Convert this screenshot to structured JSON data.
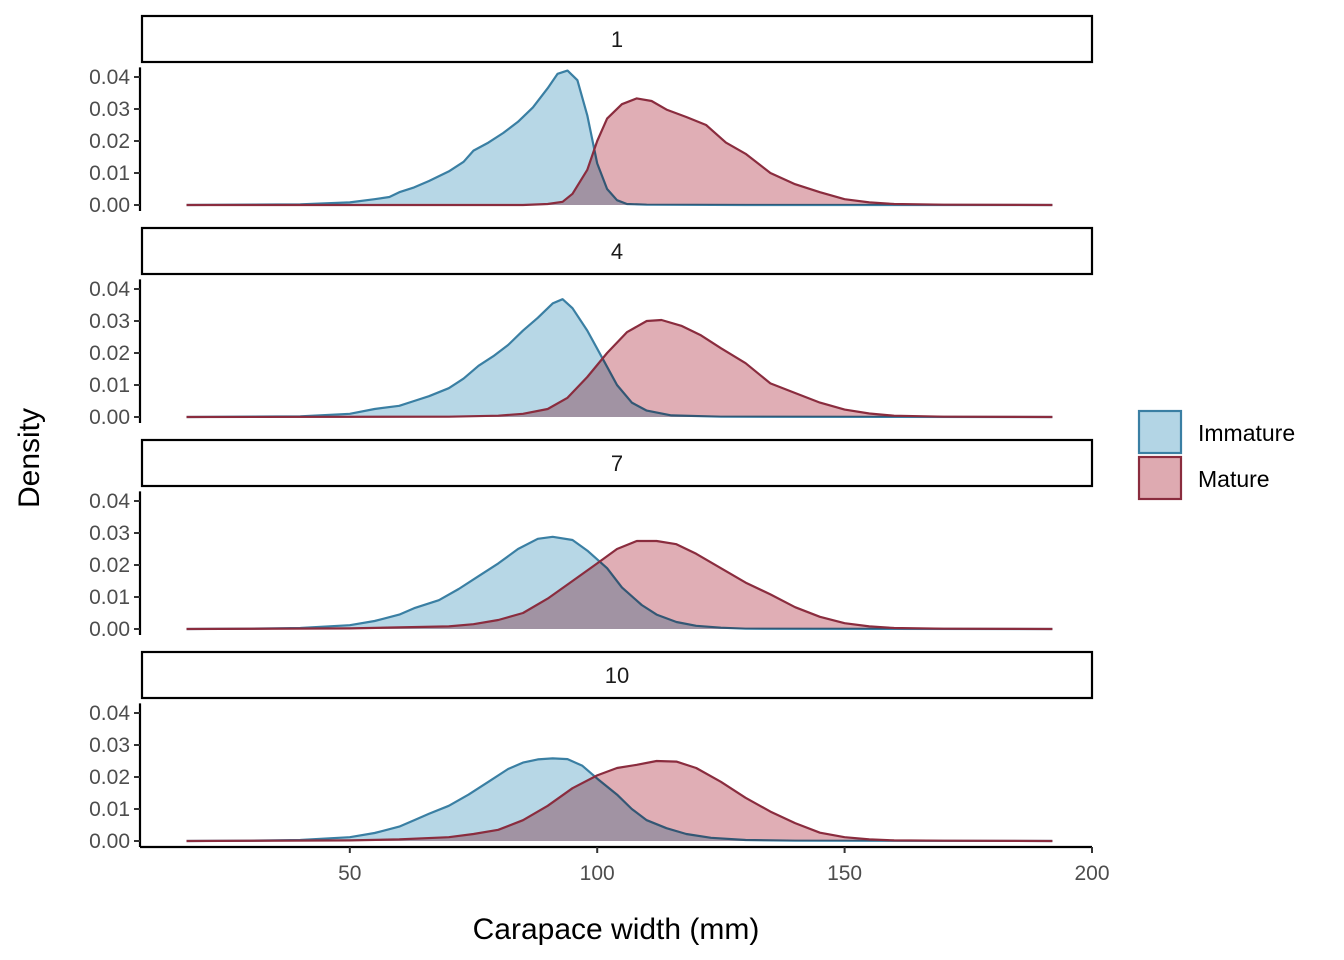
{
  "chart_data": {
    "type": "area",
    "subtype": "faceted density",
    "xlabel": "Carapace width (mm)",
    "ylabel": "Density",
    "xlim": [
      8,
      200
    ],
    "ylim": [
      0,
      0.043
    ],
    "x_ticks": [
      50,
      100,
      150,
      200
    ],
    "y_ticks": [
      0.0,
      0.01,
      0.02,
      0.03,
      0.04
    ],
    "x_tick_labels": [
      "50",
      "100",
      "150",
      "200"
    ],
    "y_tick_labels": [
      "0.00",
      "0.01",
      "0.02",
      "0.03",
      "0.04"
    ],
    "legend": {
      "position": "right"
    },
    "grid": false,
    "series_meta": [
      {
        "name": "Immature",
        "fill": "#b3d5e5",
        "line": "#3a7fa3"
      },
      {
        "name": "Mature",
        "fill": "#deaab1",
        "line": "#8a2c3e"
      }
    ],
    "panels": [
      {
        "label": "1",
        "series": [
          {
            "name": "Immature",
            "points": [
              [
                17,
                0
              ],
              [
                40,
                0.0002
              ],
              [
                50,
                0.0008
              ],
              [
                55,
                0.0018
              ],
              [
                58,
                0.0025
              ],
              [
                60,
                0.004
              ],
              [
                63,
                0.0055
              ],
              [
                66,
                0.0075
              ],
              [
                70,
                0.0105
              ],
              [
                73,
                0.0135
              ],
              [
                75,
                0.017
              ],
              [
                78,
                0.0195
              ],
              [
                81,
                0.0225
              ],
              [
                84,
                0.026
              ],
              [
                87,
                0.0305
              ],
              [
                90,
                0.0365
              ],
              [
                92,
                0.041
              ],
              [
                94,
                0.042
              ],
              [
                96,
                0.039
              ],
              [
                98,
                0.028
              ],
              [
                100,
                0.013
              ],
              [
                102,
                0.005
              ],
              [
                104,
                0.0015
              ],
              [
                106,
                0.0003
              ],
              [
                110,
                0.0001
              ],
              [
                130,
                0
              ],
              [
                192,
                0
              ]
            ]
          },
          {
            "name": "Mature",
            "points": [
              [
                17,
                0
              ],
              [
                70,
                0
              ],
              [
                85,
                0
              ],
              [
                90,
                0.0003
              ],
              [
                93,
                0.001
              ],
              [
                95,
                0.0035
              ],
              [
                98,
                0.011
              ],
              [
                100,
                0.02
              ],
              [
                102,
                0.027
              ],
              [
                105,
                0.0315
              ],
              [
                108,
                0.0333
              ],
              [
                111,
                0.0325
              ],
              [
                114,
                0.0298
              ],
              [
                118,
                0.0275
              ],
              [
                122,
                0.025
              ],
              [
                126,
                0.0195
              ],
              [
                130,
                0.016
              ],
              [
                135,
                0.01
              ],
              [
                140,
                0.0065
              ],
              [
                145,
                0.004
              ],
              [
                150,
                0.0018
              ],
              [
                155,
                0.0008
              ],
              [
                160,
                0.0003
              ],
              [
                170,
                0.0001
              ],
              [
                192,
                0
              ]
            ]
          }
        ]
      },
      {
        "label": "4",
        "series": [
          {
            "name": "Immature",
            "points": [
              [
                17,
                0
              ],
              [
                40,
                0.0002
              ],
              [
                50,
                0.001
              ],
              [
                55,
                0.0025
              ],
              [
                60,
                0.0035
              ],
              [
                63,
                0.005
              ],
              [
                66,
                0.0065
              ],
              [
                70,
                0.009
              ],
              [
                73,
                0.012
              ],
              [
                76,
                0.016
              ],
              [
                79,
                0.019
              ],
              [
                82,
                0.0225
              ],
              [
                85,
                0.027
              ],
              [
                88,
                0.031
              ],
              [
                91,
                0.0355
              ],
              [
                93,
                0.0368
              ],
              [
                95,
                0.034
              ],
              [
                98,
                0.027
              ],
              [
                101,
                0.0185
              ],
              [
                104,
                0.01
              ],
              [
                107,
                0.0045
              ],
              [
                110,
                0.002
              ],
              [
                115,
                0.0005
              ],
              [
                125,
                0.0001
              ],
              [
                192,
                0
              ]
            ]
          },
          {
            "name": "Mature",
            "points": [
              [
                17,
                0
              ],
              [
                70,
                0.0001
              ],
              [
                80,
                0.0004
              ],
              [
                85,
                0.001
              ],
              [
                90,
                0.0025
              ],
              [
                94,
                0.006
              ],
              [
                98,
                0.0125
              ],
              [
                102,
                0.02
              ],
              [
                106,
                0.0265
              ],
              [
                110,
                0.03
              ],
              [
                113,
                0.0303
              ],
              [
                117,
                0.0285
              ],
              [
                121,
                0.0255
              ],
              [
                125,
                0.0215
              ],
              [
                130,
                0.0168
              ],
              [
                135,
                0.0105
              ],
              [
                140,
                0.0075
              ],
              [
                145,
                0.0045
              ],
              [
                150,
                0.0023
              ],
              [
                155,
                0.0011
              ],
              [
                160,
                0.0004
              ],
              [
                170,
                0.0001
              ],
              [
                192,
                0
              ]
            ]
          }
        ]
      },
      {
        "label": "7",
        "series": [
          {
            "name": "Immature",
            "points": [
              [
                17,
                0
              ],
              [
                30,
                0.0001
              ],
              [
                40,
                0.0003
              ],
              [
                50,
                0.0012
              ],
              [
                55,
                0.0025
              ],
              [
                60,
                0.0045
              ],
              [
                63,
                0.0065
              ],
              [
                68,
                0.009
              ],
              [
                72,
                0.0125
              ],
              [
                76,
                0.0165
              ],
              [
                80,
                0.0205
              ],
              [
                84,
                0.025
              ],
              [
                88,
                0.0282
              ],
              [
                91,
                0.0288
              ],
              [
                95,
                0.0278
              ],
              [
                98,
                0.0245
              ],
              [
                102,
                0.019
              ],
              [
                105,
                0.013
              ],
              [
                109,
                0.0075
              ],
              [
                112,
                0.0045
              ],
              [
                116,
                0.0022
              ],
              [
                120,
                0.001
              ],
              [
                125,
                0.0004
              ],
              [
                130,
                0.0001
              ],
              [
                192,
                0
              ]
            ]
          },
          {
            "name": "Mature",
            "points": [
              [
                17,
                0
              ],
              [
                50,
                0.0002
              ],
              [
                60,
                0.0005
              ],
              [
                70,
                0.0008
              ],
              [
                75,
                0.0015
              ],
              [
                80,
                0.0028
              ],
              [
                85,
                0.005
              ],
              [
                90,
                0.0095
              ],
              [
                95,
                0.015
              ],
              [
                100,
                0.0205
              ],
              [
                104,
                0.025
              ],
              [
                108,
                0.0275
              ],
              [
                112,
                0.0275
              ],
              [
                116,
                0.0265
              ],
              [
                120,
                0.0235
              ],
              [
                125,
                0.019
              ],
              [
                130,
                0.0145
              ],
              [
                135,
                0.0108
              ],
              [
                140,
                0.0068
              ],
              [
                145,
                0.0038
              ],
              [
                150,
                0.0018
              ],
              [
                155,
                0.0008
              ],
              [
                160,
                0.0003
              ],
              [
                170,
                0.0001
              ],
              [
                192,
                0
              ]
            ]
          }
        ]
      },
      {
        "label": "10",
        "series": [
          {
            "name": "Immature",
            "points": [
              [
                17,
                0
              ],
              [
                30,
                0.0001
              ],
              [
                40,
                0.0003
              ],
              [
                50,
                0.0012
              ],
              [
                55,
                0.0025
              ],
              [
                60,
                0.0045
              ],
              [
                63,
                0.0065
              ],
              [
                66,
                0.0085
              ],
              [
                70,
                0.011
              ],
              [
                74,
                0.0145
              ],
              [
                78,
                0.0185
              ],
              [
                82,
                0.0225
              ],
              [
                85,
                0.0245
              ],
              [
                88,
                0.0255
              ],
              [
                91,
                0.0258
              ],
              [
                94,
                0.0256
              ],
              [
                97,
                0.0235
              ],
              [
                100,
                0.0195
              ],
              [
                104,
                0.0145
              ],
              [
                107,
                0.01
              ],
              [
                110,
                0.0065
              ],
              [
                114,
                0.004
              ],
              [
                118,
                0.0022
              ],
              [
                123,
                0.001
              ],
              [
                130,
                0.0003
              ],
              [
                140,
                0.0001
              ],
              [
                192,
                0
              ]
            ]
          },
          {
            "name": "Mature",
            "points": [
              [
                17,
                0
              ],
              [
                50,
                0.0002
              ],
              [
                60,
                0.0005
              ],
              [
                70,
                0.0012
              ],
              [
                75,
                0.0022
              ],
              [
                80,
                0.0035
              ],
              [
                85,
                0.0065
              ],
              [
                90,
                0.011
              ],
              [
                95,
                0.0165
              ],
              [
                100,
                0.0205
              ],
              [
                104,
                0.0228
              ],
              [
                108,
                0.0238
              ],
              [
                112,
                0.025
              ],
              [
                116,
                0.0248
              ],
              [
                120,
                0.0228
              ],
              [
                125,
                0.0185
              ],
              [
                130,
                0.0135
              ],
              [
                135,
                0.0092
              ],
              [
                140,
                0.0056
              ],
              [
                145,
                0.0026
              ],
              [
                150,
                0.0012
              ],
              [
                155,
                0.0005
              ],
              [
                160,
                0.0002
              ],
              [
                170,
                0.0001
              ],
              [
                192,
                0
              ]
            ]
          }
        ]
      }
    ]
  }
}
